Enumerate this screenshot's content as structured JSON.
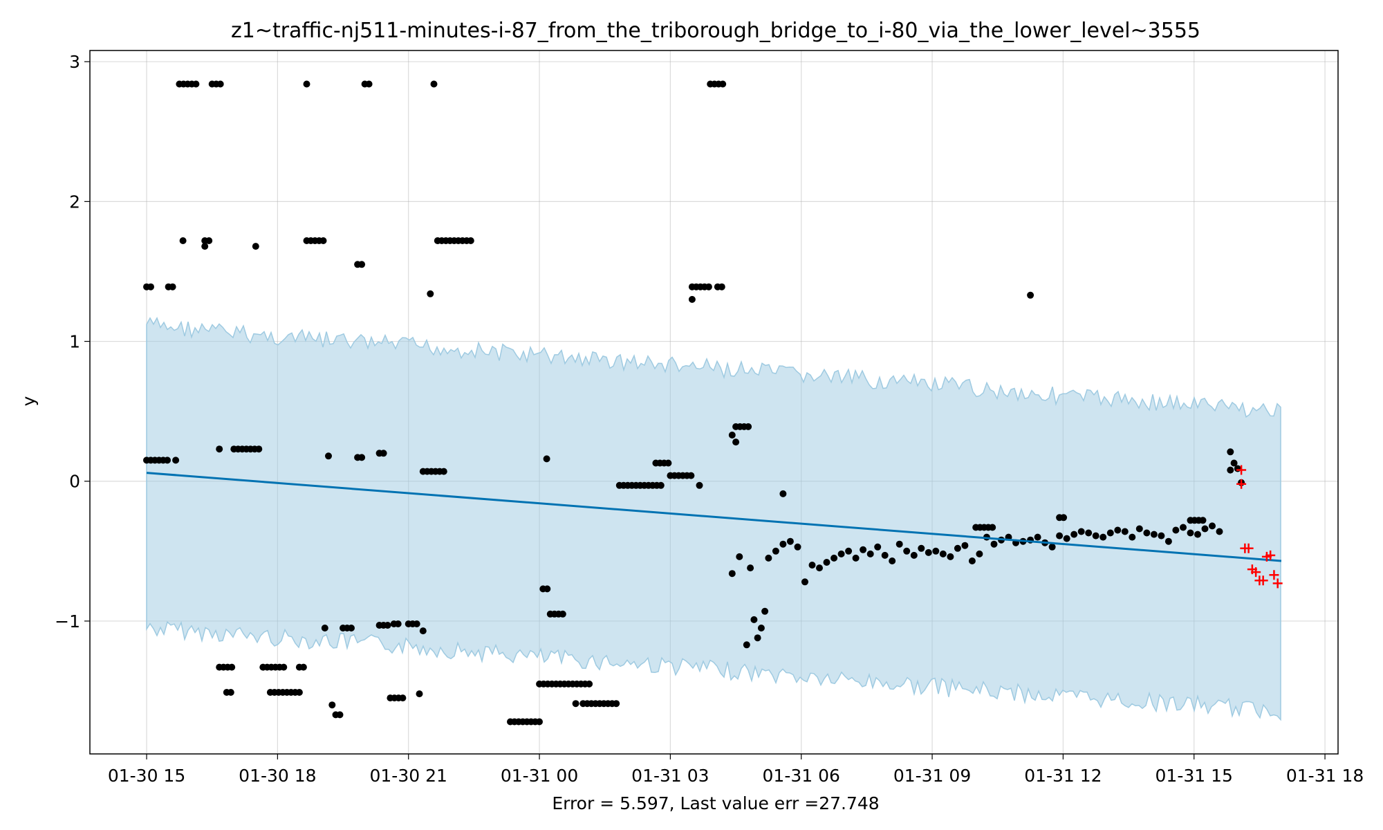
{
  "chart_data": {
    "type": "scatter",
    "title": "z1~traffic-nj511-minutes-i-87_from_the_triborough_bridge_to_i-80_via_the_lower_level~3555",
    "xlabel": "Error = 5.597, Last value err =27.748",
    "ylabel": "y",
    "x_range": [
      "2024-01-30 13:42",
      "2024-01-31 18:18"
    ],
    "ylim": [
      -1.95,
      3.08
    ],
    "grid": true,
    "x_ticks": [
      {
        "t": "2024-01-30 15:00",
        "label": "01-30 15"
      },
      {
        "t": "2024-01-30 18:00",
        "label": "01-30 18"
      },
      {
        "t": "2024-01-30 21:00",
        "label": "01-30 21"
      },
      {
        "t": "2024-01-31 00:00",
        "label": "01-31 00"
      },
      {
        "t": "2024-01-31 03:00",
        "label": "01-31 03"
      },
      {
        "t": "2024-01-31 06:00",
        "label": "01-31 06"
      },
      {
        "t": "2024-01-31 09:00",
        "label": "01-31 09"
      },
      {
        "t": "2024-01-31 12:00",
        "label": "01-31 12"
      },
      {
        "t": "2024-01-31 15:00",
        "label": "01-31 15"
      },
      {
        "t": "2024-01-31 18:00",
        "label": "01-31 18"
      }
    ],
    "y_ticks": [
      {
        "v": 3,
        "label": "3"
      },
      {
        "v": 2,
        "label": "2"
      },
      {
        "v": 1,
        "label": "1"
      },
      {
        "v": 0,
        "label": "0"
      },
      {
        "v": -1,
        "label": "−1"
      }
    ],
    "forecast": {
      "name": "trend",
      "color": "#0072b2",
      "x": [
        "2024-01-30 15:00",
        "2024-01-31 17:00"
      ],
      "y": [
        0.06,
        -0.57
      ]
    },
    "band": {
      "color": "#9ecae1",
      "x": [
        "2024-01-30 15:00",
        "2024-01-30 18:00",
        "2024-01-30 21:00",
        "2024-01-31 00:00",
        "2024-01-31 03:00",
        "2024-01-31 06:00",
        "2024-01-31 09:00",
        "2024-01-31 12:00",
        "2024-01-31 15:00",
        "2024-01-31 17:00"
      ],
      "upper": [
        1.12,
        1.03,
        0.97,
        0.9,
        0.83,
        0.76,
        0.69,
        0.61,
        0.55,
        0.5
      ],
      "lower": [
        -1.05,
        -1.12,
        -1.18,
        -1.26,
        -1.32,
        -1.4,
        -1.47,
        -1.54,
        -1.6,
        -1.65
      ]
    },
    "observed": {
      "color": "#000000",
      "segments": [
        {
          "t0": "2024-01-30 15:00",
          "t1": "2024-01-30 15:10",
          "y": 1.39
        },
        {
          "t0": "2024-01-30 15:30",
          "t1": "2024-01-30 15:40",
          "y": 1.39
        },
        {
          "t0": "2024-01-30 15:45",
          "t1": "2024-01-30 16:10",
          "y": 2.84
        },
        {
          "t0": "2024-01-30 16:30",
          "t1": "2024-01-30 16:45",
          "y": 2.84
        },
        {
          "t0": "2024-01-30 18:40",
          "t1": "2024-01-30 18:40",
          "y": 2.84
        },
        {
          "t0": "2024-01-30 20:00",
          "t1": "2024-01-30 20:10",
          "y": 2.84
        },
        {
          "t0": "2024-01-30 21:35",
          "t1": "2024-01-30 21:35",
          "y": 2.84
        },
        {
          "t0": "2024-01-31 03:55",
          "t1": "2024-01-31 04:15",
          "y": 2.84
        },
        {
          "t0": "2024-01-30 15:50",
          "t1": "2024-01-30 15:55",
          "y": 1.72
        },
        {
          "t0": "2024-01-30 16:20",
          "t1": "2024-01-30 16:30",
          "y": 1.72
        },
        {
          "t0": "2024-01-30 17:30",
          "t1": "2024-01-30 17:35",
          "y": 1.68
        },
        {
          "t0": "2024-01-30 18:40",
          "t1": "2024-01-30 19:05",
          "y": 1.72
        },
        {
          "t0": "2024-01-30 19:50",
          "t1": "2024-01-30 20:00",
          "y": 1.55
        },
        {
          "t0": "2024-01-30 21:40",
          "t1": "2024-01-30 22:30",
          "y": 1.72
        },
        {
          "t0": "2024-01-31 03:30",
          "t1": "2024-01-31 03:55",
          "y": 1.39
        },
        {
          "t0": "2024-01-31 04:05",
          "t1": "2024-01-31 04:15",
          "y": 1.39
        },
        {
          "t0": "2024-01-30 15:00",
          "t1": "2024-01-30 15:30",
          "y": 0.15
        },
        {
          "t0": "2024-01-30 17:00",
          "t1": "2024-01-30 17:35",
          "y": 0.23
        },
        {
          "t0": "2024-01-30 19:50",
          "t1": "2024-01-30 20:00",
          "y": 0.17
        },
        {
          "t0": "2024-01-30 20:20",
          "t1": "2024-01-30 20:30",
          "y": 0.2
        },
        {
          "t0": "2024-01-30 21:20",
          "t1": "2024-01-30 21:50",
          "y": 0.07
        },
        {
          "t0": "2024-01-31 00:10",
          "t1": "2024-01-31 00:15",
          "y": 0.16
        },
        {
          "t0": "2024-01-31 01:50",
          "t1": "2024-01-31 02:50",
          "y": -0.03
        },
        {
          "t0": "2024-01-31 02:40",
          "t1": "2024-01-31 03:00",
          "y": 0.13
        },
        {
          "t0": "2024-01-31 03:00",
          "t1": "2024-01-31 03:30",
          "y": 0.04
        },
        {
          "t0": "2024-01-31 04:30",
          "t1": "2024-01-31 04:50",
          "y": 0.39
        },
        {
          "t0": "2024-01-30 16:40",
          "t1": "2024-01-30 17:00",
          "y": -1.33
        },
        {
          "t0": "2024-01-30 17:40",
          "t1": "2024-01-30 18:10",
          "y": -1.33
        },
        {
          "t0": "2024-01-30 18:30",
          "t1": "2024-01-30 18:40",
          "y": -1.33
        },
        {
          "t0": "2024-01-30 16:50",
          "t1": "2024-01-30 17:00",
          "y": -1.51
        },
        {
          "t0": "2024-01-30 17:50",
          "t1": "2024-01-30 18:30",
          "y": -1.51
        },
        {
          "t0": "2024-01-30 19:30",
          "t1": "2024-01-30 19:45",
          "y": -1.05
        },
        {
          "t0": "2024-01-30 20:20",
          "t1": "2024-01-30 20:35",
          "y": -1.03
        },
        {
          "t0": "2024-01-30 20:40",
          "t1": "2024-01-30 20:50",
          "y": -1.02
        },
        {
          "t0": "2024-01-30 21:00",
          "t1": "2024-01-30 21:15",
          "y": -1.02
        },
        {
          "t0": "2024-01-30 19:20",
          "t1": "2024-01-30 19:30",
          "y": -1.67
        },
        {
          "t0": "2024-01-30 20:35",
          "t1": "2024-01-30 20:55",
          "y": -1.55
        },
        {
          "t0": "2024-01-30 23:20",
          "t1": "2024-01-31 00:05",
          "y": -1.72
        },
        {
          "t0": "2024-01-31 00:05",
          "t1": "2024-01-31 00:15",
          "y": -0.77
        },
        {
          "t0": "2024-01-31 00:15",
          "t1": "2024-01-31 00:35",
          "y": -0.95
        },
        {
          "t0": "2024-01-31 00:00",
          "t1": "2024-01-31 01:10",
          "y": -1.45
        },
        {
          "t0": "2024-01-31 01:00",
          "t1": "2024-01-31 01:50",
          "y": -1.59
        },
        {
          "t0": "2024-01-31 10:00",
          "t1": "2024-01-31 10:25",
          "y": -0.33
        },
        {
          "t0": "2024-01-31 11:55",
          "t1": "2024-01-31 12:05",
          "y": -0.26
        },
        {
          "t0": "2024-01-31 14:55",
          "t1": "2024-01-31 15:15",
          "y": -0.28
        }
      ],
      "points": [
        {
          "t": "2024-01-30 15:40",
          "y": 0.15
        },
        {
          "t": "2024-01-30 16:40",
          "y": 0.23
        },
        {
          "t": "2024-01-30 19:10",
          "y": 0.18
        },
        {
          "t": "2024-01-30 19:05",
          "y": -1.05
        },
        {
          "t": "2024-01-30 21:30",
          "y": 1.34
        },
        {
          "t": "2024-01-30 21:20",
          "y": -1.07
        },
        {
          "t": "2024-01-30 21:15",
          "y": -1.52
        },
        {
          "t": "2024-01-30 19:15",
          "y": -1.6
        },
        {
          "t": "2024-01-30 16:20",
          "y": 1.68
        },
        {
          "t": "2024-01-31 00:50",
          "y": -1.59
        },
        {
          "t": "2024-01-31 03:30",
          "y": 1.3
        },
        {
          "t": "2024-01-31 03:40",
          "y": -0.03
        },
        {
          "t": "2024-01-31 04:25",
          "y": 0.33
        },
        {
          "t": "2024-01-31 04:30",
          "y": 0.28
        },
        {
          "t": "2024-01-31 04:25",
          "y": -0.66
        },
        {
          "t": "2024-01-31 04:35",
          "y": -0.54
        },
        {
          "t": "2024-01-31 04:50",
          "y": -0.62
        },
        {
          "t": "2024-01-31 04:45",
          "y": -1.17
        },
        {
          "t": "2024-01-31 04:55",
          "y": -0.99
        },
        {
          "t": "2024-01-31 05:00",
          "y": -1.12
        },
        {
          "t": "2024-01-31 05:05",
          "y": -1.05
        },
        {
          "t": "2024-01-31 05:10",
          "y": -0.93
        },
        {
          "t": "2024-01-31 05:35",
          "y": -0.09
        },
        {
          "t": "2024-01-31 11:15",
          "y": 1.33
        },
        {
          "t": "2024-01-31 15:50",
          "y": 0.21
        },
        {
          "t": "2024-01-31 15:50",
          "y": 0.08
        },
        {
          "t": "2024-01-31 15:55",
          "y": 0.13
        },
        {
          "t": "2024-01-31 16:00",
          "y": 0.09
        },
        {
          "t": "2024-01-31 16:05",
          "y": -0.01
        }
      ],
      "x": [
        "2024-01-31 05:15",
        "2024-01-31 05:25",
        "2024-01-31 05:35",
        "2024-01-31 05:45",
        "2024-01-31 05:55",
        "2024-01-31 06:05",
        "2024-01-31 06:15",
        "2024-01-31 06:25",
        "2024-01-31 06:35",
        "2024-01-31 06:45",
        "2024-01-31 06:55",
        "2024-01-31 07:05",
        "2024-01-31 07:15",
        "2024-01-31 07:25",
        "2024-01-31 07:35",
        "2024-01-31 07:45",
        "2024-01-31 07:55",
        "2024-01-31 08:05",
        "2024-01-31 08:15",
        "2024-01-31 08:25",
        "2024-01-31 08:35",
        "2024-01-31 08:45",
        "2024-01-31 08:55",
        "2024-01-31 09:05",
        "2024-01-31 09:15",
        "2024-01-31 09:25",
        "2024-01-31 09:35",
        "2024-01-31 09:45",
        "2024-01-31 09:55",
        "2024-01-31 10:05",
        "2024-01-31 10:15",
        "2024-01-31 10:25",
        "2024-01-31 10:35",
        "2024-01-31 10:45",
        "2024-01-31 10:55",
        "2024-01-31 11:05",
        "2024-01-31 11:15",
        "2024-01-31 11:25",
        "2024-01-31 11:35",
        "2024-01-31 11:45",
        "2024-01-31 11:55",
        "2024-01-31 12:05",
        "2024-01-31 12:15",
        "2024-01-31 12:25",
        "2024-01-31 12:35",
        "2024-01-31 12:45",
        "2024-01-31 12:55",
        "2024-01-31 13:05",
        "2024-01-31 13:15",
        "2024-01-31 13:25",
        "2024-01-31 13:35",
        "2024-01-31 13:45",
        "2024-01-31 13:55",
        "2024-01-31 14:05",
        "2024-01-31 14:15",
        "2024-01-31 14:25",
        "2024-01-31 14:35",
        "2024-01-31 14:45",
        "2024-01-31 14:55",
        "2024-01-31 15:05",
        "2024-01-31 15:15",
        "2024-01-31 15:25",
        "2024-01-31 15:35"
      ],
      "y": [
        -0.55,
        -0.5,
        -0.45,
        -0.43,
        -0.47,
        -0.72,
        -0.6,
        -0.62,
        -0.58,
        -0.55,
        -0.52,
        -0.5,
        -0.55,
        -0.49,
        -0.52,
        -0.47,
        -0.53,
        -0.57,
        -0.45,
        -0.5,
        -0.53,
        -0.48,
        -0.51,
        -0.5,
        -0.52,
        -0.54,
        -0.48,
        -0.46,
        -0.57,
        -0.52,
        -0.4,
        -0.45,
        -0.42,
        -0.4,
        -0.44,
        -0.43,
        -0.42,
        -0.4,
        -0.44,
        -0.47,
        -0.39,
        -0.41,
        -0.38,
        -0.36,
        -0.37,
        -0.39,
        -0.4,
        -0.37,
        -0.35,
        -0.36,
        -0.4,
        -0.34,
        -0.37,
        -0.38,
        -0.39,
        -0.43,
        -0.35,
        -0.33,
        -0.37,
        -0.38,
        -0.34,
        -0.32,
        -0.36
      ]
    },
    "holdout": {
      "color": "#ff0000",
      "x": [
        "2024-01-31 16:05",
        "2024-01-31 16:05",
        "2024-01-31 16:10",
        "2024-01-31 16:15",
        "2024-01-31 16:20",
        "2024-01-31 16:25",
        "2024-01-31 16:30",
        "2024-01-31 16:35",
        "2024-01-31 16:40",
        "2024-01-31 16:45",
        "2024-01-31 16:50",
        "2024-01-31 16:55"
      ],
      "y": [
        0.08,
        -0.02,
        -0.48,
        -0.48,
        -0.63,
        -0.65,
        -0.71,
        -0.71,
        -0.54,
        -0.53,
        -0.67,
        -0.73
      ]
    }
  }
}
